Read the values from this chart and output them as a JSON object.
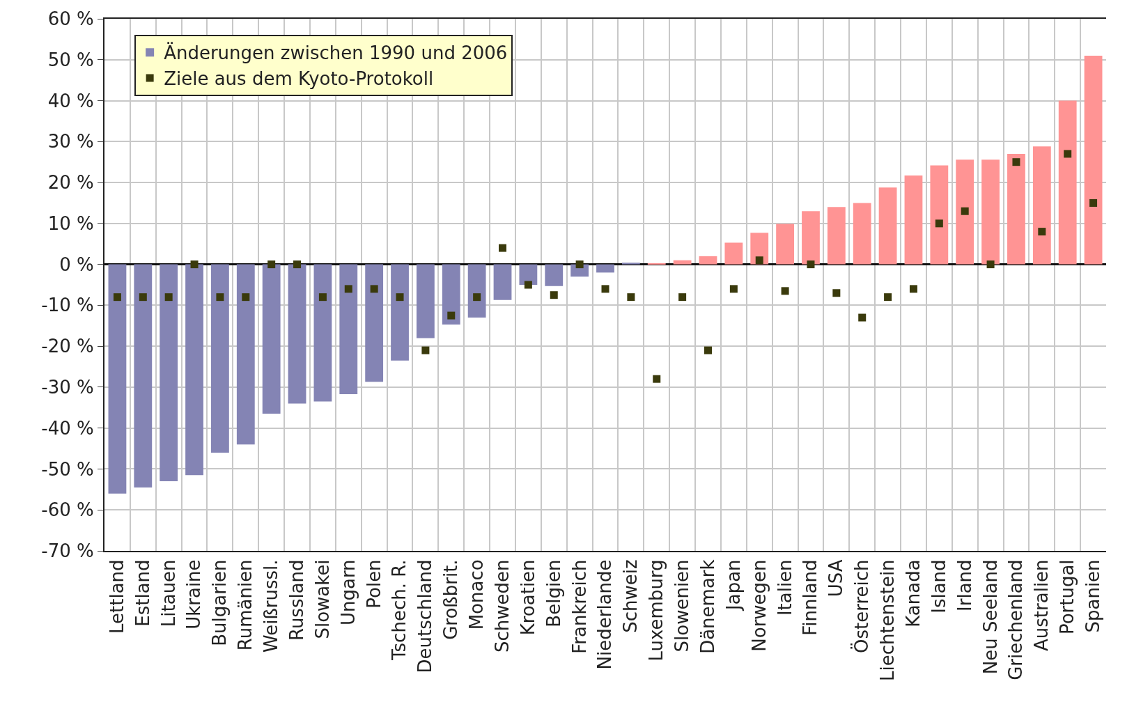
{
  "chart_data": {
    "type": "bar",
    "categories": [
      "Lettland",
      "Estland",
      "Litauen",
      "Ukraine",
      "Bulgarien",
      "Rumänien",
      "Weißrussl.",
      "Russland",
      "Slowakei",
      "Ungarn",
      "Polen",
      "Tschech. R.",
      "Deutschland",
      "Großbrit.",
      "Monaco",
      "Schweden",
      "Kroatien",
      "Belgien",
      "Frankreich",
      "Niederlande",
      "Schweiz",
      "Luxemburg",
      "Slowenien",
      "Dänemark",
      "Japan",
      "Norwegen",
      "Italien",
      "Finnland",
      "USA",
      "Österreich",
      "Liechtenstein",
      "Kanada",
      "Island",
      "Irland",
      "Neu Seeland",
      "Griechenland",
      "Australien",
      "Portugal",
      "Spanien"
    ],
    "series": [
      {
        "name": "Änderungen zwischen 1990 und 2006",
        "values": [
          -56,
          -54.5,
          -53,
          -51.5,
          -46,
          -44,
          -36.5,
          -34,
          -33.5,
          -31.7,
          -28.7,
          -23.5,
          -18,
          -14.7,
          -13,
          -8.7,
          -5,
          -5.3,
          -3,
          -2,
          0.4,
          0.3,
          1,
          2,
          5.3,
          7.7,
          9.9,
          13,
          14,
          15,
          18.8,
          21.7,
          24.2,
          25.6,
          25.6,
          27,
          28.8,
          40,
          51
        ],
        "colors": [
          "#8484b4",
          "#8484b4",
          "#8484b4",
          "#8484b4",
          "#8484b4",
          "#8484b4",
          "#8484b4",
          "#8484b4",
          "#8484b4",
          "#8484b4",
          "#8484b4",
          "#8484b4",
          "#8484b4",
          "#8484b4",
          "#8484b4",
          "#8484b4",
          "#8484b4",
          "#8484b4",
          "#8484b4",
          "#8484b4",
          "#8484b4",
          "#ff9494",
          "#ff9494",
          "#ff9494",
          "#ff9494",
          "#ff9494",
          "#ff9494",
          "#ff9494",
          "#ff9494",
          "#ff9494",
          "#ff9494",
          "#ff9494",
          "#ff9494",
          "#ff9494",
          "#ff9494",
          "#ff9494",
          "#ff9494",
          "#ff9494",
          "#ff9494"
        ]
      },
      {
        "name": "Ziele aus dem Kyoto-Protokoll",
        "type": "scatter",
        "color": "#3a3a0c",
        "values": [
          -8,
          -8,
          -8,
          0,
          -8,
          -8,
          0,
          0,
          -8,
          -6,
          -6,
          -8,
          -21,
          -12.5,
          -8,
          4,
          -5,
          -7.5,
          0,
          -6,
          -8,
          -28,
          -8,
          -21,
          -6,
          1,
          -6.5,
          0,
          -7,
          -13,
          -8,
          -6,
          10,
          13,
          0,
          25,
          8,
          27,
          15
        ]
      }
    ],
    "ylim": [
      -70,
      60
    ],
    "yticks": [
      {
        "value": -70,
        "label": "-70 %"
      },
      {
        "value": -60,
        "label": "-60 %"
      },
      {
        "value": -50,
        "label": "-50 %"
      },
      {
        "value": -40,
        "label": "-40 %"
      },
      {
        "value": -30,
        "label": "-30 %"
      },
      {
        "value": -20,
        "label": "-20 %"
      },
      {
        "value": -10,
        "label": "-10 %"
      },
      {
        "value": 0,
        "label": "0 %"
      },
      {
        "value": 10,
        "label": "10 %"
      },
      {
        "value": 20,
        "label": "20 %"
      },
      {
        "value": 30,
        "label": "30 %"
      },
      {
        "value": 40,
        "label": "40 %"
      },
      {
        "value": 50,
        "label": "50 %"
      },
      {
        "value": 60,
        "label": "60 %"
      }
    ],
    "grid": true,
    "legend": "top left",
    "marker": "square"
  }
}
